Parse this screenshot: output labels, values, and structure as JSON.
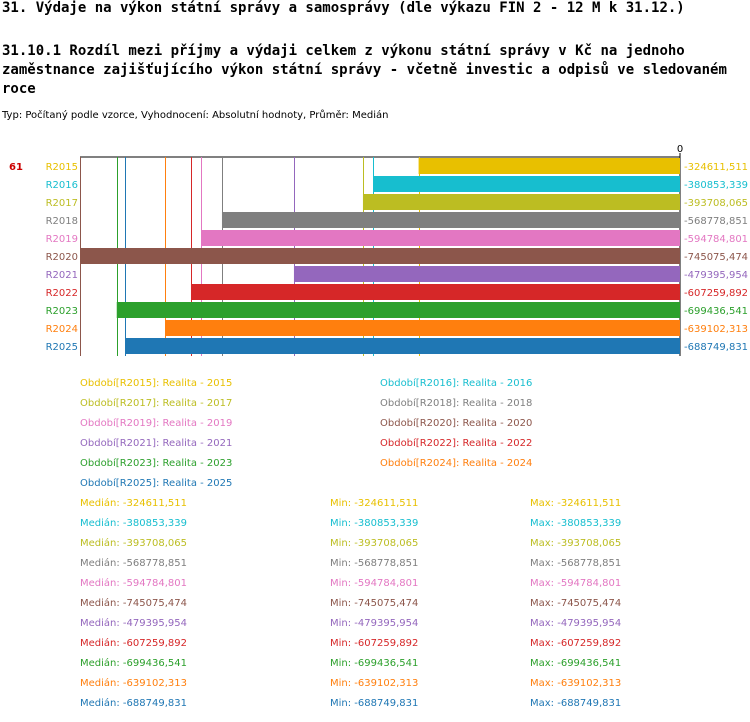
{
  "header": {
    "title": "31. Výdaje na výkon státní správy a samosprávy (dle výkazu FIN 2 - 12 M k 31.12.)",
    "subtitle": "31.10.1 Rozdíl mezi příjmy a výdaji celkem z výkonu státní správy v Kč na jednoho zaměstnance zajišťujícího výkon státní správy - včetně investic a odpisů ve sledovaném roce",
    "meta": "Typ: Počítaný podle vzorce, Vyhodnocení: Absolutní hodnoty, Průměr: Medián"
  },
  "chart_data": {
    "type": "bar",
    "orientation": "horizontal",
    "row_label": "61",
    "zero_label": "0",
    "xlim": [
      -745075.474,
      0
    ],
    "series": [
      {
        "category": "R2015",
        "value": -324611.511,
        "value_label": "-324611,511",
        "color": "#e8c000"
      },
      {
        "category": "R2016",
        "value": -380853.339,
        "value_label": "-380853,339",
        "color": "#17becf"
      },
      {
        "category": "R2017",
        "value": -393708.065,
        "value_label": "-393708,065",
        "color": "#bcbd22"
      },
      {
        "category": "R2018",
        "value": -568778.851,
        "value_label": "-568778,851",
        "color": "#7f7f7f"
      },
      {
        "category": "R2019",
        "value": -594784.801,
        "value_label": "-594784,801",
        "color": "#e377c2"
      },
      {
        "category": "R2020",
        "value": -745075.474,
        "value_label": "-745075,474",
        "color": "#8c564b"
      },
      {
        "category": "R2021",
        "value": -479395.954,
        "value_label": "-479395,954",
        "color": "#9467bd"
      },
      {
        "category": "R2022",
        "value": -607259.892,
        "value_label": "-607259,892",
        "color": "#d62728"
      },
      {
        "category": "R2023",
        "value": -699436.541,
        "value_label": "-699436,541",
        "color": "#2ca02c"
      },
      {
        "category": "R2024",
        "value": -639102.313,
        "value_label": "-639102,313",
        "color": "#ff7f0e"
      },
      {
        "category": "R2025",
        "value": -688749.831,
        "value_label": "-688749,831",
        "color": "#1f77b4"
      }
    ]
  },
  "legend": [
    {
      "text": "Období[R2015]: Realita - 2015",
      "color": "#e8c000"
    },
    {
      "text": "Období[R2016]: Realita - 2016",
      "color": "#17becf"
    },
    {
      "text": "Období[R2017]: Realita - 2017",
      "color": "#bcbd22"
    },
    {
      "text": "Období[R2018]: Realita - 2018",
      "color": "#7f7f7f"
    },
    {
      "text": "Období[R2019]: Realita - 2019",
      "color": "#e377c2"
    },
    {
      "text": "Období[R2020]: Realita - 2020",
      "color": "#8c564b"
    },
    {
      "text": "Období[R2021]: Realita - 2021",
      "color": "#9467bd"
    },
    {
      "text": "Období[R2022]: Realita - 2022",
      "color": "#d62728"
    },
    {
      "text": "Období[R2023]: Realita - 2023",
      "color": "#2ca02c"
    },
    {
      "text": "Období[R2024]: Realita - 2024",
      "color": "#ff7f0e"
    },
    {
      "text": "Období[R2025]: Realita - 2025",
      "color": "#1f77b4"
    }
  ],
  "stats": [
    {
      "median": "Medián: -324611,511",
      "min": "Min: -324611,511",
      "max": "Max: -324611,511",
      "color": "#e8c000"
    },
    {
      "median": "Medián: -380853,339",
      "min": "Min: -380853,339",
      "max": "Max: -380853,339",
      "color": "#17becf"
    },
    {
      "median": "Medián: -393708,065",
      "min": "Min: -393708,065",
      "max": "Max: -393708,065",
      "color": "#bcbd22"
    },
    {
      "median": "Medián: -568778,851",
      "min": "Min: -568778,851",
      "max": "Max: -568778,851",
      "color": "#7f7f7f"
    },
    {
      "median": "Medián: -594784,801",
      "min": "Min: -594784,801",
      "max": "Max: -594784,801",
      "color": "#e377c2"
    },
    {
      "median": "Medián: -745075,474",
      "min": "Min: -745075,474",
      "max": "Max: -745075,474",
      "color": "#8c564b"
    },
    {
      "median": "Medián: -479395,954",
      "min": "Min: -479395,954",
      "max": "Max: -479395,954",
      "color": "#9467bd"
    },
    {
      "median": "Medián: -607259,892",
      "min": "Min: -607259,892",
      "max": "Max: -607259,892",
      "color": "#d62728"
    },
    {
      "median": "Medián: -699436,541",
      "min": "Min: -699436,541",
      "max": "Max: -699436,541",
      "color": "#2ca02c"
    },
    {
      "median": "Medián: -639102,313",
      "min": "Min: -639102,313",
      "max": "Max: -639102,313",
      "color": "#ff7f0e"
    },
    {
      "median": "Medián: -688749,831",
      "min": "Min: -688749,831",
      "max": "Max: -688749,831",
      "color": "#1f77b4"
    }
  ]
}
